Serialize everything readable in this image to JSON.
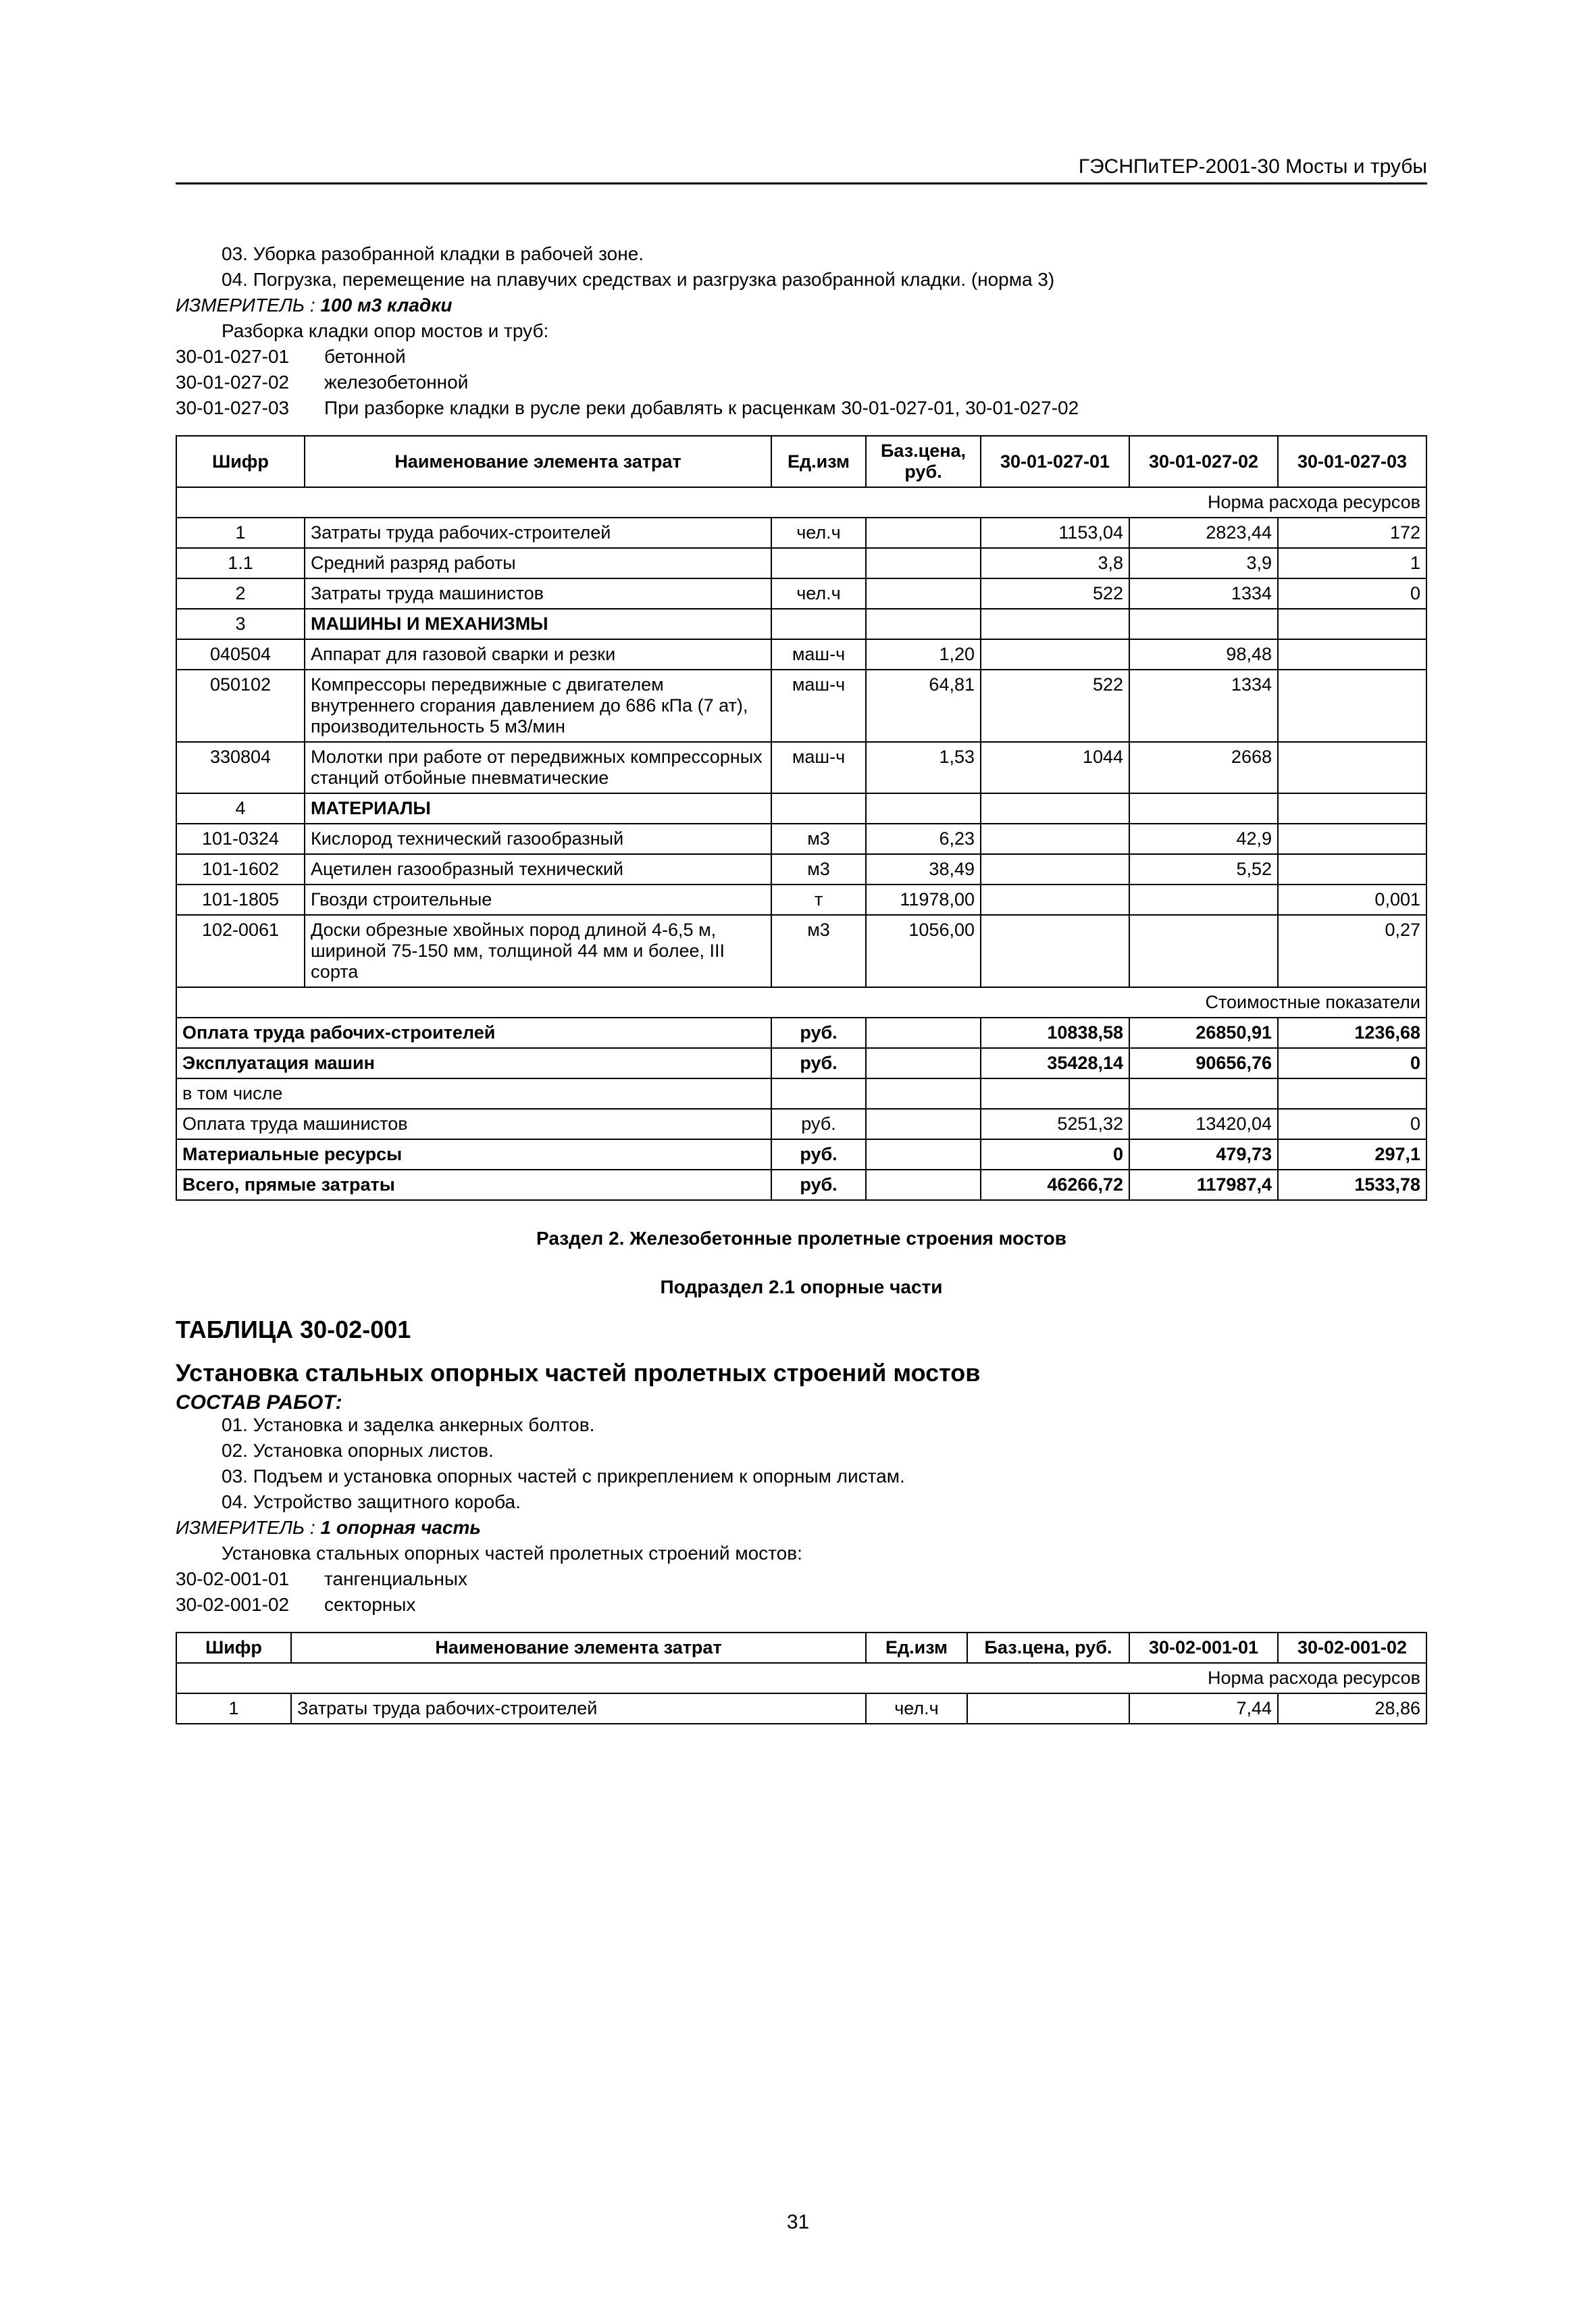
{
  "header": {
    "right_text": "ГЭСНПиТЕР-2001-30 Мосты и трубы"
  },
  "top_block": {
    "works": [
      "03. Уборка разобранной кладки в рабочей зоне.",
      "04. Погрузка, перемещение на плавучих средствах и разгрузка разобранной кладки. (норма 3)"
    ],
    "meter_label": "ИЗМЕРИТЕЛЬ :",
    "meter_value": "100 м3 кладки",
    "sub_text": "Разборка кладки опор мостов и труб:",
    "code_lines": [
      {
        "code": "30-01-027-01",
        "text": "бетонной"
      },
      {
        "code": "30-01-027-02",
        "text": "железобетонной"
      },
      {
        "code": "30-01-027-03",
        "text": "При разборке кладки в русле реки добавлять к расценкам 30-01-027-01, 30-01-027-02"
      }
    ]
  },
  "table1": {
    "cols": {
      "shifr": "Шифр",
      "name": "Наименование элемента затрат",
      "unit": "Ед.изм",
      "base_price": "Баз.цена, руб.",
      "c1": "30-01-027-01",
      "c2": "30-01-027-02",
      "c3": "30-01-027-03"
    },
    "section_norma": "Норма расхода ресурсов",
    "section_cost": "Стоимостные показатели",
    "rows": [
      {
        "shifr": "1",
        "name": "Затраты труда рабочих-строителей",
        "unit": "чел.ч",
        "bp": "",
        "v1": "1153,04",
        "v2": "2823,44",
        "v3": "172",
        "center_shifr": true
      },
      {
        "shifr": "1.1",
        "name": "Средний разряд работы",
        "unit": "",
        "bp": "",
        "v1": "3,8",
        "v2": "3,9",
        "v3": "1",
        "center_shifr": true
      },
      {
        "shifr": "2",
        "name": "Затраты труда машинистов",
        "unit": "чел.ч",
        "bp": "",
        "v1": "522",
        "v2": "1334",
        "v3": "0",
        "center_shifr": true
      },
      {
        "shifr": "3",
        "name": "МАШИНЫ И МЕХАНИЗМЫ",
        "unit": "",
        "bp": "",
        "v1": "",
        "v2": "",
        "v3": "",
        "bold": true,
        "center_shifr": true
      },
      {
        "shifr": "040504",
        "name": "Аппарат для газовой сварки и резки",
        "unit": "маш-ч",
        "bp": "1,20",
        "v1": "",
        "v2": "98,48",
        "v3": "",
        "center_shifr": true
      },
      {
        "shifr": "050102",
        "name": "Компрессоры передвижные с двигателем внутреннего сгорания давлением до 686 кПа (7 ат), производительность 5 м3/мин",
        "unit": "маш-ч",
        "bp": "64,81",
        "v1": "522",
        "v2": "1334",
        "v3": "",
        "center_shifr": true
      },
      {
        "shifr": "330804",
        "name": "Молотки при работе от передвижных компрессорных станций отбойные пневматические",
        "unit": "маш-ч",
        "bp": "1,53",
        "v1": "1044",
        "v2": "2668",
        "v3": "",
        "center_shifr": true
      },
      {
        "shifr": "4",
        "name": "МАТЕРИАЛЫ",
        "unit": "",
        "bp": "",
        "v1": "",
        "v2": "",
        "v3": "",
        "bold": true,
        "center_shifr": true
      },
      {
        "shifr": "101-0324",
        "name": "Кислород технический газообразный",
        "unit": "м3",
        "bp": "6,23",
        "v1": "",
        "v2": "42,9",
        "v3": "",
        "center_shifr": true
      },
      {
        "shifr": "101-1602",
        "name": "Ацетилен газообразный технический",
        "unit": "м3",
        "bp": "38,49",
        "v1": "",
        "v2": "5,52",
        "v3": "",
        "center_shifr": true
      },
      {
        "shifr": "101-1805",
        "name": "Гвозди строительные",
        "unit": "т",
        "bp": "11978,00",
        "v1": "",
        "v2": "",
        "v3": "0,001",
        "center_shifr": true
      },
      {
        "shifr": "102-0061",
        "name": "Доски обрезные хвойных пород длиной 4-6,5 м, шириной 75-150 мм, толщиной 44 мм и более, III сорта",
        "unit": "м3",
        "bp": "1056,00",
        "v1": "",
        "v2": "",
        "v3": "0,27",
        "center_shifr": true
      }
    ],
    "cost_rows": [
      {
        "name": "Оплата труда рабочих-строителей",
        "unit": "руб.",
        "bp": "",
        "v1": "10838,58",
        "v2": "26850,91",
        "v3": "1236,68",
        "bold": true
      },
      {
        "name": "Эксплуатация машин",
        "unit": "руб.",
        "bp": "",
        "v1": "35428,14",
        "v2": "90656,76",
        "v3": "0",
        "bold": true
      },
      {
        "name": "в том числе",
        "unit": "",
        "bp": "",
        "v1": "",
        "v2": "",
        "v3": "",
        "bold": false
      },
      {
        "name": "Оплата труда машинистов",
        "unit": "руб.",
        "bp": "",
        "v1": "5251,32",
        "v2": "13420,04",
        "v3": "0",
        "bold": false
      },
      {
        "name": "Материальные ресурсы",
        "unit": "руб.",
        "bp": "",
        "v1": "0",
        "v2": "479,73",
        "v3": "297,1",
        "bold": true
      },
      {
        "name": "Всего, прямые затраты",
        "unit": "руб.",
        "bp": "",
        "v1": "46266,72",
        "v2": "117987,4",
        "v3": "1533,78",
        "bold": true
      }
    ]
  },
  "section2": {
    "title1": "Раздел 2. Железобетонные пролетные строения мостов",
    "title2": "Подраздел 2.1 опорные части",
    "table_code": "ТАБЛИЦА 30-02-001",
    "table_name": "Установка стальных опорных частей пролетных строений мостов",
    "sostav": "СОСТАВ РАБОТ:",
    "works": [
      "01. Установка и заделка анкерных болтов.",
      "02. Установка опорных листов.",
      "03. Подъем и установка опорных частей с прикреплением к опорным листам.",
      "04. Устройство защитного короба."
    ],
    "meter_label": "ИЗМЕРИТЕЛЬ :",
    "meter_value": "1 опорная часть",
    "sub_text": "Установка стальных опорных частей пролетных строений мостов:",
    "code_lines": [
      {
        "code": "30-02-001-01",
        "text": "тангенциальных"
      },
      {
        "code": "30-02-001-02",
        "text": "секторных"
      }
    ]
  },
  "table2": {
    "cols": {
      "shifr": "Шифр",
      "name": "Наименование элемента затрат",
      "unit": "Ед.изм",
      "base_price": "Баз.цена, руб.",
      "c1": "30-02-001-01",
      "c2": "30-02-001-02"
    },
    "section_norma": "Норма расхода ресурсов",
    "rows": [
      {
        "shifr": "1",
        "name": "Затраты труда рабочих-строителей",
        "unit": "чел.ч",
        "bp": "",
        "v1": "7,44",
        "v2": "28,86",
        "center_shifr": true
      }
    ]
  },
  "page_number": "31"
}
